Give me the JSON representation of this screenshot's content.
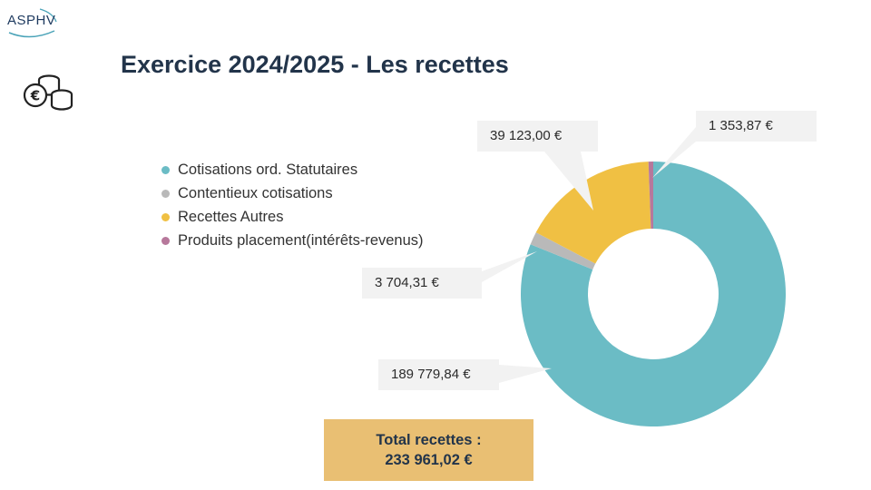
{
  "brand": {
    "logo_text": "ASPHV"
  },
  "header": {
    "title": "Exercice 2024/2025 - Les recettes",
    "icon": "euro-coins-icon"
  },
  "total": {
    "label": "Total recettes :",
    "value": "233 961,02 €"
  },
  "chart_data": {
    "type": "pie",
    "variant": "donut",
    "title": "",
    "legend_position": "left",
    "categories": [
      "Cotisations ord. Statutaires",
      "Contentieux cotisations",
      "Recettes Autres",
      "Produits placement(intérêts-revenus)"
    ],
    "values": [
      189779.84,
      3704.31,
      39123.0,
      1353.87
    ],
    "value_labels": [
      "189 779,84 €",
      "3 704,31 €",
      "39 123,00 €",
      "1 353,87 €"
    ],
    "colors": [
      "#6bbcc5",
      "#b9b9b9",
      "#f0c043",
      "#b7789b"
    ]
  }
}
